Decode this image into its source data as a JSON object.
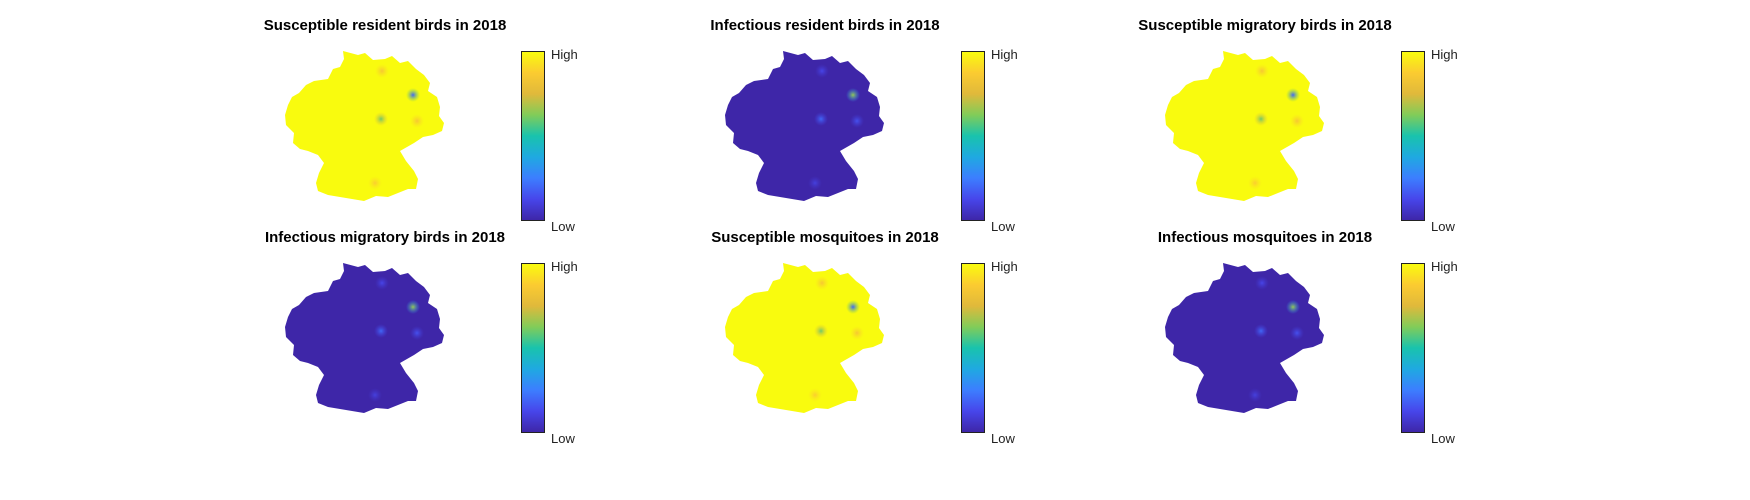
{
  "colors": {
    "low": "#3e26a8",
    "high": "#f9fb0e",
    "colormap": [
      "#3e26a8",
      "#4746eb",
      "#3c7eff",
      "#1fa9e1",
      "#19c3ad",
      "#81cc59",
      "#e0b93b",
      "#fbcb31",
      "#f9fb0e"
    ]
  },
  "chart_data": [
    {
      "type": "heatmap",
      "title": "Susceptible resident birds in 2018",
      "colorbar": {
        "high_label": "High",
        "low_label": "Low"
      },
      "base_level": 1.0,
      "hotspots": [
        {
          "location": "north",
          "level": 0.85
        },
        {
          "location": "northeast",
          "level": 0.2
        },
        {
          "location": "center",
          "level": 0.6
        },
        {
          "location": "east",
          "level": 0.85
        },
        {
          "location": "south",
          "level": 0.88
        }
      ]
    },
    {
      "type": "heatmap",
      "title": "Infectious resident birds in 2018",
      "colorbar": {
        "high_label": "High",
        "low_label": "Low"
      },
      "base_level": 0.0,
      "hotspots": [
        {
          "location": "north",
          "level": 0.12
        },
        {
          "location": "northeast",
          "level": 0.65
        },
        {
          "location": "center",
          "level": 0.2
        },
        {
          "location": "east",
          "level": 0.15
        },
        {
          "location": "south",
          "level": 0.1
        }
      ]
    },
    {
      "type": "heatmap",
      "title": "Susceptible migratory birds in 2018",
      "colorbar": {
        "high_label": "High",
        "low_label": "Low"
      },
      "base_level": 1.0,
      "hotspots": [
        {
          "location": "north",
          "level": 0.85
        },
        {
          "location": "northeast",
          "level": 0.2
        },
        {
          "location": "center",
          "level": 0.6
        },
        {
          "location": "east",
          "level": 0.85
        },
        {
          "location": "south",
          "level": 0.88
        }
      ]
    },
    {
      "type": "heatmap",
      "title": "Infectious migratory birds in 2018",
      "colorbar": {
        "high_label": "High",
        "low_label": "Low"
      },
      "base_level": 0.0,
      "hotspots": [
        {
          "location": "north",
          "level": 0.12
        },
        {
          "location": "northeast",
          "level": 0.65
        },
        {
          "location": "center",
          "level": 0.2
        },
        {
          "location": "east",
          "level": 0.15
        },
        {
          "location": "south",
          "level": 0.1
        }
      ]
    },
    {
      "type": "heatmap",
      "title": "Susceptible mosquitoes in 2018",
      "colorbar": {
        "high_label": "High",
        "low_label": "Low"
      },
      "base_level": 1.0,
      "hotspots": [
        {
          "location": "north",
          "level": 0.85
        },
        {
          "location": "northeast",
          "level": 0.2
        },
        {
          "location": "center",
          "level": 0.6
        },
        {
          "location": "east",
          "level": 0.85
        },
        {
          "location": "south",
          "level": 0.88
        }
      ]
    },
    {
      "type": "heatmap",
      "title": "Infectious mosquitoes in 2018",
      "colorbar": {
        "high_label": "High",
        "low_label": "Low"
      },
      "base_level": 0.0,
      "hotspots": [
        {
          "location": "north",
          "level": 0.12
        },
        {
          "location": "northeast",
          "level": 0.65
        },
        {
          "location": "center",
          "level": 0.2
        },
        {
          "location": "east",
          "level": 0.15
        },
        {
          "location": "south",
          "level": 0.1
        }
      ]
    }
  ]
}
